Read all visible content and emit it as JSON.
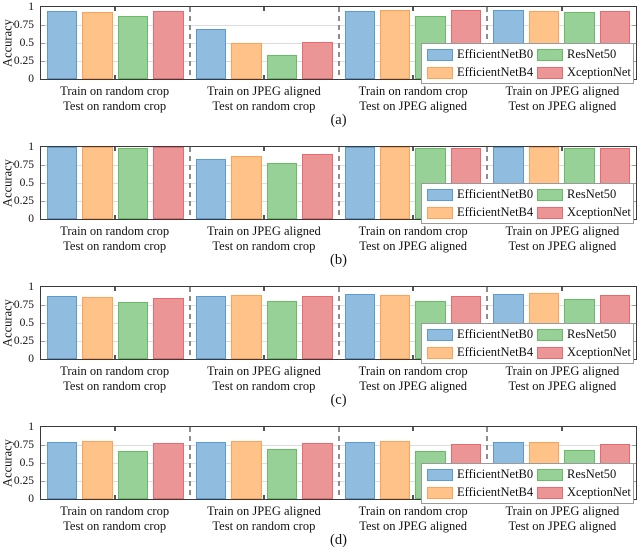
{
  "figure": {
    "ytick_labels": [
      {
        "label": "1",
        "value": 1
      },
      {
        "label": "0.75",
        "value": 0.75
      },
      {
        "label": "0.5",
        "value": 0.5
      },
      {
        "label": "0.25",
        "value": 0.25
      },
      {
        "label": "0",
        "value": 0
      }
    ],
    "grid_values": [
      0.25,
      0.5,
      0.75
    ],
    "models": [
      {
        "name": "EfficientNetB0",
        "fill": "#8fbcdf",
        "edge": "#5b9bd0"
      },
      {
        "name": "EfficientNetB4",
        "fill": "#ffc288",
        "edge": "#ffa257"
      },
      {
        "name": "ResNet50",
        "fill": "#98d197",
        "edge": "#67bd66"
      },
      {
        "name": "XceptionNet",
        "fill": "#ec9597",
        "edge": "#e66a6e"
      }
    ],
    "legend_order": [
      "EfficientNetB0",
      "ResNet50",
      "EfficientNetB4",
      "XceptionNet"
    ],
    "separator_color": "#8d8d8d",
    "grid_on": true,
    "legend_position": "lower right (inside axes)"
  },
  "chart_data": [
    {
      "type": "bar",
      "caption": "(a)",
      "ylabel": "Accuracy",
      "ylim": [
        0,
        1
      ],
      "categories": [
        [
          "Train on random crop",
          "Test on random crop"
        ],
        [
          "Train on JPEG aligned",
          "Test on random crop"
        ],
        [
          "Train on random crop",
          "Test on JPEG aligned"
        ],
        [
          "Train on JPEG aligned",
          "Test on JPEG aligned"
        ]
      ],
      "series": [
        {
          "name": "EfficientNetB0",
          "values": [
            0.94,
            0.69,
            0.95,
            0.96
          ]
        },
        {
          "name": "EfficientNetB4",
          "values": [
            0.93,
            0.5,
            0.96,
            0.95
          ]
        },
        {
          "name": "ResNet50",
          "values": [
            0.88,
            0.33,
            0.88,
            0.93
          ]
        },
        {
          "name": "XceptionNet",
          "values": [
            0.95,
            0.51,
            0.96,
            0.94
          ]
        }
      ]
    },
    {
      "type": "bar",
      "caption": "(b)",
      "ylabel": "Accuracy",
      "ylim": [
        0,
        1
      ],
      "categories": [
        [
          "Train on random crop",
          "Test on random crop"
        ],
        [
          "Train on JPEG aligned",
          "Test on random crop"
        ],
        [
          "Train on random crop",
          "Test on JPEG aligned"
        ],
        [
          "Train on JPEG aligned",
          "Test on JPEG aligned"
        ]
      ],
      "series": [
        {
          "name": "EfficientNetB0",
          "values": [
            1.0,
            0.83,
            1.0,
            1.0
          ]
        },
        {
          "name": "EfficientNetB4",
          "values": [
            1.0,
            0.87,
            1.0,
            1.0
          ]
        },
        {
          "name": "ResNet50",
          "values": [
            0.99,
            0.78,
            0.99,
            0.99
          ]
        },
        {
          "name": "XceptionNet",
          "values": [
            1.0,
            0.9,
            0.99,
            0.99
          ]
        }
      ]
    },
    {
      "type": "bar",
      "caption": "(c)",
      "ylabel": "Accuracy",
      "ylim": [
        0,
        1
      ],
      "categories": [
        [
          "Train on random crop",
          "Test on random crop"
        ],
        [
          "Train on JPEG aligned",
          "Test on random crop"
        ],
        [
          "Train on random crop",
          "Test on JPEG aligned"
        ],
        [
          "Train on JPEG aligned",
          "Test on JPEG aligned"
        ]
      ],
      "series": [
        {
          "name": "EfficientNetB0",
          "values": [
            0.88,
            0.88,
            0.9,
            0.9
          ]
        },
        {
          "name": "EfficientNetB4",
          "values": [
            0.86,
            0.89,
            0.89,
            0.91
          ]
        },
        {
          "name": "ResNet50",
          "values": [
            0.79,
            0.81,
            0.81,
            0.84
          ]
        },
        {
          "name": "XceptionNet",
          "values": [
            0.85,
            0.87,
            0.88,
            0.89
          ]
        }
      ]
    },
    {
      "type": "bar",
      "caption": "(d)",
      "ylabel": "Accuracy",
      "ylim": [
        0,
        1
      ],
      "categories": [
        [
          "Train on random crop",
          "Test on random crop"
        ],
        [
          "Train on JPEG aligned",
          "Test on random crop"
        ],
        [
          "Train on random crop",
          "Test on JPEG aligned"
        ],
        [
          "Train on JPEG aligned",
          "Test on JPEG aligned"
        ]
      ],
      "series": [
        {
          "name": "EfficientNetB0",
          "values": [
            0.79,
            0.79,
            0.79,
            0.79
          ]
        },
        {
          "name": "EfficientNetB4",
          "values": [
            0.8,
            0.8,
            0.8,
            0.79
          ]
        },
        {
          "name": "ResNet50",
          "values": [
            0.67,
            0.69,
            0.66,
            0.68
          ]
        },
        {
          "name": "XceptionNet",
          "values": [
            0.78,
            0.78,
            0.77,
            0.77
          ]
        }
      ]
    }
  ]
}
